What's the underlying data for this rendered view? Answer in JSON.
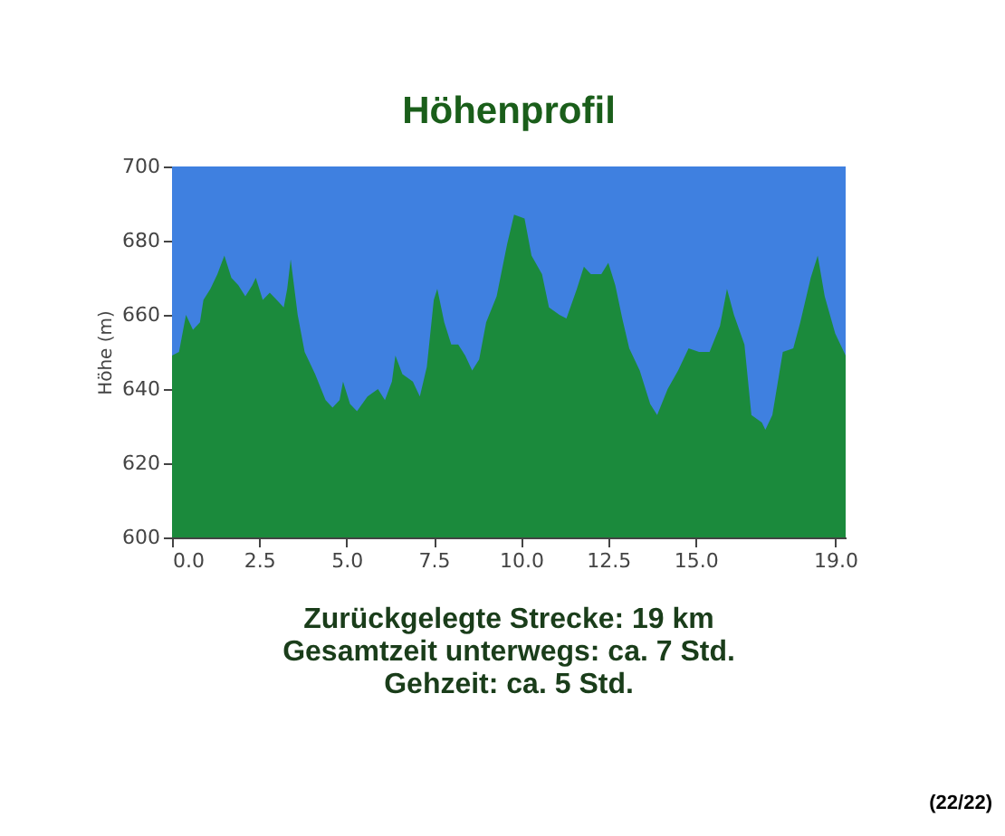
{
  "chart_data": {
    "type": "area",
    "title": "Höhenprofil",
    "ylabel": "Höhe (m)",
    "x": [
      0,
      0.2,
      0.4,
      0.6,
      0.8,
      0.9,
      1.1,
      1.3,
      1.5,
      1.7,
      1.9,
      2.1,
      2.3,
      2.4,
      2.6,
      2.8,
      3.0,
      3.2,
      3.3,
      3.4,
      3.6,
      3.8,
      4.1,
      4.4,
      4.6,
      4.8,
      4.9,
      5.1,
      5.3,
      5.6,
      5.9,
      6.1,
      6.3,
      6.4,
      6.6,
      6.9,
      7.1,
      7.3,
      7.5,
      7.6,
      7.8,
      8.0,
      8.2,
      8.4,
      8.6,
      8.8,
      9.0,
      9.3,
      9.6,
      9.8,
      10.1,
      10.3,
      10.6,
      10.8,
      11.1,
      11.3,
      11.6,
      11.8,
      12.0,
      12.3,
      12.5,
      12.7,
      12.9,
      13.1,
      13.4,
      13.7,
      13.9,
      14.2,
      14.5,
      14.8,
      15.1,
      15.4,
      15.7,
      15.9,
      16.1,
      16.4,
      16.6,
      16.9,
      17.0,
      17.2,
      17.5,
      17.8,
      18.0,
      18.3,
      18.5,
      18.7,
      19.0,
      19.3
    ],
    "series": [
      {
        "color": "#1b8a3c",
        "values": [
          649,
          650,
          660,
          656,
          658,
          664,
          667,
          671,
          676,
          670,
          668,
          665,
          668,
          670,
          664,
          666,
          664,
          662,
          667,
          675,
          660,
          650,
          644,
          637,
          635,
          637,
          642,
          636,
          634,
          638,
          640,
          637,
          642,
          649,
          644,
          642,
          638,
          646,
          664,
          667,
          658,
          652,
          652,
          649,
          645,
          648,
          658,
          665,
          679,
          687,
          686,
          676,
          671,
          662,
          660,
          659,
          667,
          673,
          671,
          671,
          674,
          668,
          659,
          651,
          645,
          636,
          633,
          640,
          645,
          651,
          650,
          650,
          657,
          667,
          660,
          652,
          633,
          631,
          629,
          633,
          650,
          651,
          658,
          670,
          676,
          665,
          655,
          649
        ]
      }
    ],
    "xlim": [
      0,
      19.3
    ],
    "xticks": [
      {
        "value": 0,
        "label": "0.0"
      },
      {
        "value": 2.5,
        "label": "2.5"
      },
      {
        "value": 5,
        "label": "5.0"
      },
      {
        "value": 7.5,
        "label": "7.5"
      },
      {
        "value": 10,
        "label": "10.0"
      },
      {
        "value": 12.5,
        "label": "12.5"
      },
      {
        "value": 15,
        "label": "15.0"
      },
      {
        "value": 19,
        "label": "19.0"
      }
    ],
    "ylim": [
      600,
      700
    ],
    "yticks": [
      600,
      620,
      640,
      660,
      680,
      700
    ],
    "bands": [
      {
        "axis": "y",
        "from": 600,
        "to": 700,
        "color": "#3f80e0"
      }
    ],
    "annotations": [
      "Zurückgelegte Strecke: 19 km",
      "Gesamtzeit unterwegs: ca. 7 Std.",
      "Gehzeit: ca. 5 Std.",
      "(22/22)"
    ]
  }
}
